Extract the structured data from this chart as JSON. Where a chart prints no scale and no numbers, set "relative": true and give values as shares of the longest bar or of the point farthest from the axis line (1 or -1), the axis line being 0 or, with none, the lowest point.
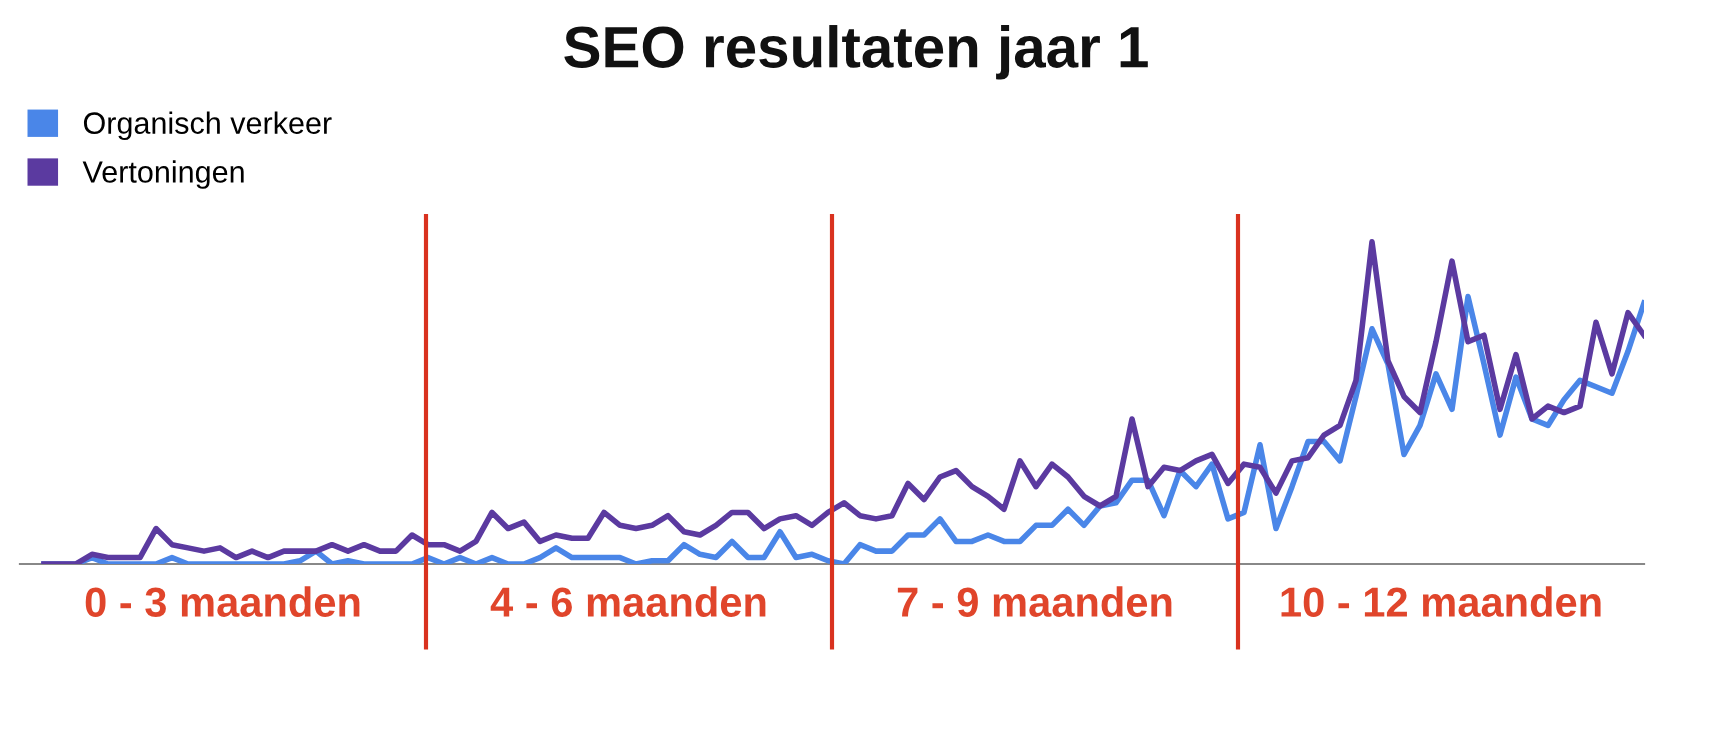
{
  "chart_data": {
    "type": "line",
    "title": "SEO resultaten jaar 1",
    "relative": true,
    "categories": [
      null,
      null,
      null,
      null,
      null,
      null,
      null,
      null,
      null,
      null,
      null,
      null,
      null,
      null,
      null,
      null,
      null,
      null,
      null,
      null,
      null,
      null,
      null,
      null,
      null,
      null,
      null,
      null,
      null,
      null,
      null,
      null,
      null,
      null,
      null,
      null,
      null,
      null,
      null,
      null,
      null,
      null,
      null,
      null,
      null,
      null,
      null,
      null,
      null,
      null,
      null,
      null,
      null,
      null,
      null,
      null,
      null,
      null,
      null,
      null,
      null,
      null,
      null,
      null,
      null,
      null,
      null,
      null,
      null,
      null,
      null,
      null,
      null,
      null,
      null,
      null,
      null,
      null,
      null,
      null,
      null,
      null,
      null,
      null,
      null,
      null,
      null,
      null,
      null,
      null,
      null,
      null,
      null,
      null,
      null,
      null,
      null,
      null,
      null,
      null,
      null
    ],
    "series": [
      {
        "name": "Organisch verkeer",
        "color": "#4a86e8",
        "values": [
          0,
          0,
          0,
          0.02,
          0,
          0,
          0,
          0,
          0.02,
          0,
          0,
          0,
          0,
          0,
          0,
          0,
          0.01,
          0.04,
          0,
          0.01,
          0,
          0,
          0,
          0,
          0.02,
          0,
          0.02,
          0,
          0.02,
          0,
          0,
          0.02,
          0.05,
          0.02,
          0.02,
          0.02,
          0.02,
          0,
          0.01,
          0.01,
          0.06,
          0.03,
          0.02,
          0.07,
          0.02,
          0.02,
          0.1,
          0.02,
          0.03,
          0.01,
          0,
          0.06,
          0.04,
          0.04,
          0.09,
          0.09,
          0.14,
          0.07,
          0.07,
          0.09,
          0.07,
          0.07,
          0.12,
          0.12,
          0.17,
          0.12,
          0.18,
          0.19,
          0.26,
          0.26,
          0.15,
          0.29,
          0.24,
          0.31,
          0.14,
          0.16,
          0.37,
          0.11,
          0.24,
          0.38,
          0.38,
          0.32,
          0.52,
          0.73,
          0.62,
          0.34,
          0.43,
          0.59,
          0.48,
          0.83,
          0.62,
          0.4,
          0.58,
          0.45,
          0.43,
          0.51,
          0.57,
          0.55,
          0.53,
          0.66,
          0.81
        ]
      },
      {
        "name": "Vertoningen",
        "color": "#5b3aa0",
        "values": [
          0,
          0,
          0,
          0.03,
          0.02,
          0.02,
          0.02,
          0.11,
          0.06,
          0.05,
          0.04,
          0.05,
          0.02,
          0.04,
          0.02,
          0.04,
          0.04,
          0.04,
          0.06,
          0.04,
          0.06,
          0.04,
          0.04,
          0.09,
          0.06,
          0.06,
          0.04,
          0.07,
          0.16,
          0.11,
          0.13,
          0.07,
          0.09,
          0.08,
          0.08,
          0.16,
          0.12,
          0.11,
          0.12,
          0.15,
          0.1,
          0.09,
          0.12,
          0.16,
          0.16,
          0.11,
          0.14,
          0.15,
          0.12,
          0.16,
          0.19,
          0.15,
          0.14,
          0.15,
          0.25,
          0.2,
          0.27,
          0.29,
          0.24,
          0.21,
          0.17,
          0.32,
          0.24,
          0.31,
          0.27,
          0.21,
          0.18,
          0.21,
          0.45,
          0.24,
          0.3,
          0.29,
          0.32,
          0.34,
          0.25,
          0.31,
          0.3,
          0.22,
          0.32,
          0.33,
          0.4,
          0.43,
          0.57,
          1,
          0.63,
          0.52,
          0.47,
          0.69,
          0.94,
          0.69,
          0.71,
          0.48,
          0.65,
          0.45,
          0.49,
          0.47,
          0.49,
          0.75,
          0.59,
          0.78,
          0.71
        ]
      }
    ],
    "annotations": [
      "0 - 3 maanden",
      "4 - 6 maanden",
      "7 - 9 maanden",
      "10 - 12 maanden"
    ],
    "legend": "top left",
    "marker": "none",
    "line_style": "solid"
  }
}
